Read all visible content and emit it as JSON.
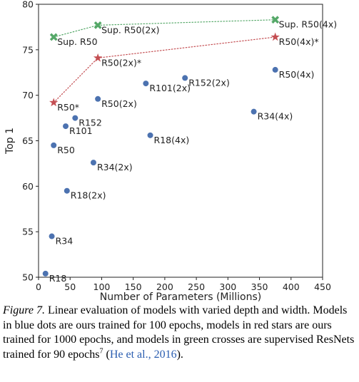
{
  "chart_data": {
    "type": "scatter",
    "xlabel": "Number of Parameters (Millions)",
    "ylabel": "Top 1",
    "xlim": [
      0,
      450
    ],
    "ylim": [
      50,
      80
    ],
    "xticks": [
      0,
      50,
      100,
      150,
      200,
      250,
      300,
      350,
      400,
      450
    ],
    "yticks": [
      50,
      55,
      60,
      65,
      70,
      75,
      80
    ],
    "grid": false,
    "series": [
      {
        "marker": "circle",
        "color": "#4c72b0",
        "connected": false,
        "points": [
          {
            "label": "R18",
            "x": 11,
            "y": 50.4
          },
          {
            "label": "R34",
            "x": 21,
            "y": 54.5
          },
          {
            "label": "R18(2x)",
            "x": 45,
            "y": 59.5
          },
          {
            "label": "R50",
            "x": 24,
            "y": 64.5
          },
          {
            "label": "R101",
            "x": 43,
            "y": 66.6
          },
          {
            "label": "R152",
            "x": 58,
            "y": 67.5
          },
          {
            "label": "R34(2x)",
            "x": 87,
            "y": 62.6
          },
          {
            "label": "R50(2x)",
            "x": 94,
            "y": 69.6
          },
          {
            "label": "R18(4x)",
            "x": 177,
            "y": 65.6
          },
          {
            "label": "R101(2x)",
            "x": 170,
            "y": 71.3
          },
          {
            "label": "R152(2x)",
            "x": 232,
            "y": 71.9
          },
          {
            "label": "R34(4x)",
            "x": 341,
            "y": 68.2
          },
          {
            "label": "R50(4x)",
            "x": 375,
            "y": 72.8
          }
        ]
      },
      {
        "marker": "star",
        "color": "#c44e52",
        "connected": true,
        "line_style": "dotted",
        "points": [
          {
            "label": "R50*",
            "x": 24,
            "y": 69.2
          },
          {
            "label": "R50(2x)*",
            "x": 94,
            "y": 74.1
          },
          {
            "label": "R50(4x)*",
            "x": 375,
            "y": 76.4
          }
        ]
      },
      {
        "marker": "cross",
        "color": "#55a868",
        "connected": true,
        "line_style": "dotted",
        "points": [
          {
            "label": "Sup. R50",
            "x": 24,
            "y": 76.4
          },
          {
            "label": "Sup. R50(2x)",
            "x": 94,
            "y": 77.7
          },
          {
            "label": "Sup. R50(4x)",
            "x": 375,
            "y": 78.3
          }
        ]
      }
    ]
  },
  "caption": {
    "figure_label": "Figure 7.",
    "text": " Linear evaluation of models with varied depth and width. Models in blue dots are ours trained for 100 epochs, models in red stars are ours trained for 1000 epochs, and models in green crosses are supervised ResNets trained for 90 epochs",
    "footnote_mark": "7",
    "citation": "He et al., 2016",
    "open_paren": " (",
    "close_paren": ")."
  }
}
